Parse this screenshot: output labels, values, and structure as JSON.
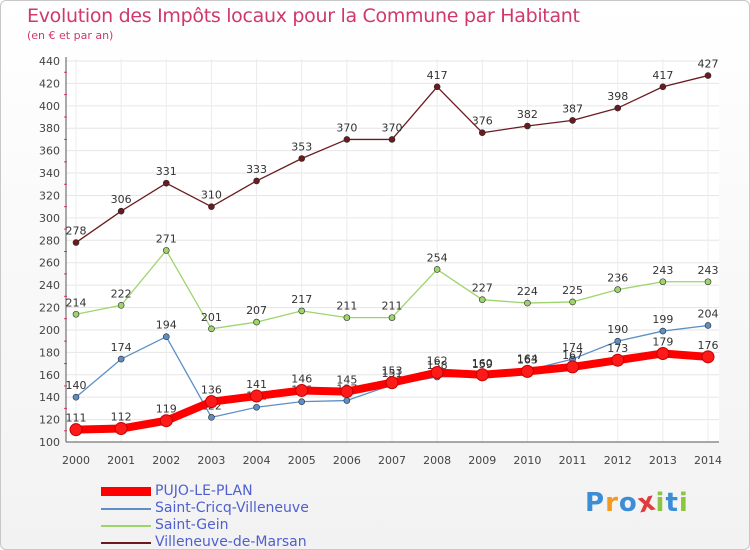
{
  "header": {
    "title": "Evolution des Impôts locaux pour la Commune par Habitant",
    "subtitle": "(en € et par an)"
  },
  "logo": {
    "text": "Proxiti",
    "letters": [
      "P",
      "r",
      "o",
      "x",
      "i",
      "t",
      "i"
    ],
    "colors": [
      "#3b8ed6",
      "#f39a1e",
      "#3b8ed6",
      "#e23b3b",
      "#8cc63f",
      "#3b8ed6",
      "#8cc63f"
    ]
  },
  "chart_data": {
    "type": "line",
    "x": [
      "2000",
      "2001",
      "2002",
      "2003",
      "2004",
      "2005",
      "2006",
      "2007",
      "2008",
      "2009",
      "2010",
      "2011",
      "2012",
      "2013",
      "2014"
    ],
    "ylim": [
      100,
      440
    ],
    "y_ticks": [
      100,
      120,
      140,
      160,
      180,
      200,
      220,
      240,
      260,
      280,
      300,
      320,
      340,
      360,
      380,
      400,
      420,
      440
    ],
    "grid": true,
    "legend_position": "bottom-left",
    "series": [
      {
        "name": "Villeneuve-de-Marsan",
        "color": "#6b1b1f",
        "values": [
          278,
          306,
          331,
          310,
          333,
          353,
          370,
          370,
          417,
          376,
          382,
          387,
          398,
          417,
          427
        ],
        "style": "thin"
      },
      {
        "name": "Saint-Gein",
        "color": "#9ed56b",
        "values": [
          214,
          222,
          271,
          201,
          207,
          217,
          211,
          211,
          254,
          227,
          224,
          225,
          236,
          243,
          243
        ],
        "style": "thin"
      },
      {
        "name": "Saint-Cricq-Villeneuve",
        "color": "#5b8fc6",
        "values": [
          140,
          174,
          194,
          122,
          131,
          136,
          137,
          151,
          158,
          159,
          164,
          174,
          190,
          199,
          204
        ],
        "style": "thin"
      },
      {
        "name": "PUJO-LE-PLAN",
        "color": "#ff0000",
        "values": [
          111,
          112,
          119,
          136,
          141,
          146,
          145,
          153,
          162,
          160,
          163,
          167,
          173,
          179,
          176
        ],
        "style": "thick"
      }
    ]
  },
  "legend": [
    {
      "name": "PUJO-LE-PLAN",
      "color": "#ff0000",
      "style": "thick"
    },
    {
      "name": "Saint-Cricq-Villeneuve",
      "color": "#5b8fc6",
      "style": "thin"
    },
    {
      "name": "Saint-Gein",
      "color": "#9ed56b",
      "style": "thin"
    },
    {
      "name": "Villeneuve-de-Marsan",
      "color": "#6b1b1f",
      "style": "thin"
    }
  ]
}
